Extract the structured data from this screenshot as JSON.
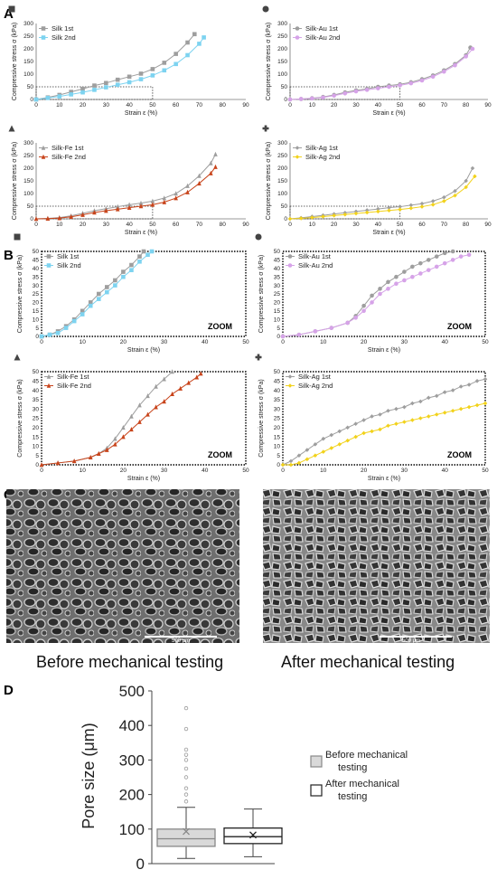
{
  "panel_labels": {
    "A": "A",
    "B": "B",
    "C": "C",
    "D": "D"
  },
  "axis": {
    "ylabel": "Compressive stress σ (kPa)",
    "xlabel": "Strain ε (%)"
  },
  "zoom_label": "ZOOM",
  "captions": {
    "before": "Before mechanical testing",
    "after": "After mechanical testing"
  },
  "scale_bar": "500 μm",
  "colors": {
    "first": "#9e9e9e",
    "silk": "#7dd3f0",
    "au": "#d6a3e8",
    "fe": "#c8441b",
    "ag": "#f2d21b",
    "box_fill": "#d9d9d9"
  },
  "chart_data": [
    {
      "type": "line",
      "panel": "A",
      "marker": "square",
      "xlabel": "Strain ε (%)",
      "ylabel": "Compressive stress σ (kPa)",
      "xlim": [
        0,
        90
      ],
      "ylim": [
        0,
        300
      ],
      "xticks": [
        0,
        10,
        20,
        30,
        40,
        50,
        60,
        70,
        80,
        90
      ],
      "yticks": [
        0,
        50,
        100,
        150,
        200,
        250,
        300
      ],
      "zoom_box": [
        0,
        50
      ],
      "series": [
        {
          "name": "Silk 1st",
          "color": "#9e9e9e",
          "x": [
            0,
            5,
            10,
            15,
            20,
            25,
            30,
            35,
            40,
            45,
            50,
            55,
            60,
            65,
            68
          ],
          "y": [
            0,
            8,
            18,
            30,
            42,
            55,
            65,
            78,
            90,
            102,
            120,
            145,
            180,
            225,
            258
          ]
        },
        {
          "name": "Silk 2nd",
          "color": "#7dd3f0",
          "x": [
            0,
            5,
            10,
            15,
            20,
            25,
            30,
            35,
            40,
            45,
            50,
            55,
            60,
            65,
            70,
            72
          ],
          "y": [
            0,
            6,
            12,
            20,
            28,
            38,
            48,
            58,
            68,
            80,
            95,
            115,
            140,
            175,
            220,
            245
          ]
        }
      ]
    },
    {
      "type": "line",
      "panel": "A",
      "marker": "circle",
      "xlabel": "Strain ε (%)",
      "ylabel": "Compressive stress σ (kPa)",
      "xlim": [
        0,
        90
      ],
      "ylim": [
        0,
        300
      ],
      "xticks": [
        0,
        10,
        20,
        30,
        40,
        50,
        60,
        70,
        80,
        90
      ],
      "yticks": [
        0,
        50,
        100,
        150,
        200,
        250,
        300
      ],
      "zoom_box": [
        0,
        50
      ],
      "series": [
        {
          "name": "Silk-Au 1st",
          "color": "#9e9e9e",
          "x": [
            0,
            5,
            10,
            15,
            20,
            25,
            30,
            35,
            40,
            45,
            50,
            55,
            60,
            65,
            70,
            75,
            80,
            82
          ],
          "y": [
            0,
            2,
            5,
            10,
            18,
            28,
            36,
            42,
            50,
            55,
            60,
            68,
            80,
            95,
            115,
            140,
            175,
            205
          ]
        },
        {
          "name": "Silk-Au 2nd",
          "color": "#d6a3e8",
          "x": [
            0,
            5,
            10,
            15,
            20,
            25,
            30,
            35,
            40,
            45,
            50,
            55,
            60,
            65,
            70,
            75,
            80,
            83
          ],
          "y": [
            0,
            2,
            4,
            8,
            15,
            24,
            32,
            38,
            44,
            50,
            56,
            64,
            75,
            90,
            110,
            135,
            170,
            200
          ]
        }
      ]
    },
    {
      "type": "line",
      "panel": "A",
      "marker": "triangle",
      "xlabel": "Strain ε (%)",
      "ylabel": "Compressive stress σ (kPa)",
      "xlim": [
        0,
        90
      ],
      "ylim": [
        0,
        300
      ],
      "xticks": [
        0,
        10,
        20,
        30,
        40,
        50,
        60,
        70,
        80,
        90
      ],
      "yticks": [
        0,
        50,
        100,
        150,
        200,
        250,
        300
      ],
      "zoom_box": [
        0,
        50
      ],
      "series": [
        {
          "name": "Silk-Fe 1st",
          "color": "#9e9e9e",
          "x": [
            0,
            5,
            10,
            15,
            20,
            25,
            30,
            35,
            40,
            45,
            50,
            55,
            60,
            65,
            70,
            75,
            77
          ],
          "y": [
            0,
            2,
            5,
            12,
            22,
            32,
            40,
            48,
            56,
            62,
            70,
            82,
            100,
            130,
            170,
            220,
            255
          ]
        },
        {
          "name": "Silk-Fe 2nd",
          "color": "#c8441b",
          "x": [
            0,
            5,
            10,
            15,
            20,
            25,
            30,
            35,
            40,
            45,
            50,
            55,
            60,
            65,
            70,
            75,
            77
          ],
          "y": [
            0,
            1,
            3,
            8,
            16,
            25,
            32,
            38,
            44,
            50,
            56,
            66,
            82,
            105,
            140,
            180,
            205
          ]
        }
      ]
    },
    {
      "type": "line",
      "panel": "A",
      "marker": "cross",
      "xlabel": "Strain ε (%)",
      "ylabel": "Compressive stress σ (kPa)",
      "xlim": [
        0,
        90
      ],
      "ylim": [
        0,
        300
      ],
      "xticks": [
        0,
        10,
        20,
        30,
        40,
        50,
        60,
        70,
        80,
        90
      ],
      "yticks": [
        0,
        50,
        100,
        150,
        200,
        250,
        300
      ],
      "zoom_box": [
        0,
        50
      ],
      "series": [
        {
          "name": "Silk-Ag 1st",
          "color": "#9e9e9e",
          "x": [
            0,
            5,
            10,
            15,
            20,
            25,
            30,
            35,
            40,
            45,
            50,
            55,
            60,
            65,
            70,
            75,
            80,
            83
          ],
          "y": [
            0,
            4,
            9,
            14,
            19,
            24,
            29,
            34,
            39,
            44,
            48,
            54,
            60,
            70,
            85,
            110,
            150,
            200
          ]
        },
        {
          "name": "Silk-Ag 2nd",
          "color": "#f2d21b",
          "x": [
            0,
            5,
            10,
            15,
            20,
            25,
            30,
            35,
            40,
            45,
            50,
            55,
            60,
            65,
            70,
            75,
            80,
            84
          ],
          "y": [
            0,
            2,
            5,
            9,
            13,
            17,
            21,
            25,
            29,
            33,
            37,
            42,
            48,
            56,
            70,
            92,
            125,
            168
          ]
        }
      ]
    },
    {
      "type": "line",
      "panel": "B",
      "marker": "square",
      "xlabel": "Strain ε (%)",
      "ylabel": "Compressive stress σ (kPa)",
      "xlim": [
        0,
        50
      ],
      "ylim": [
        0,
        50
      ],
      "xticks": [
        0,
        10,
        20,
        30,
        40,
        50
      ],
      "yticks": [
        0,
        5,
        10,
        15,
        20,
        25,
        30,
        35,
        40,
        45,
        50
      ],
      "zoom": true,
      "series": [
        {
          "name": "Silk 1st",
          "color": "#9e9e9e",
          "x": [
            0,
            2,
            4,
            6,
            8,
            10,
            12,
            14,
            16,
            18,
            20,
            22,
            24,
            25
          ],
          "y": [
            0,
            1,
            3,
            6,
            10,
            15,
            20,
            25,
            29,
            33,
            38,
            42,
            47,
            50
          ]
        },
        {
          "name": "Silk 2nd",
          "color": "#7dd3f0",
          "x": [
            0,
            2,
            4,
            6,
            8,
            10,
            12,
            14,
            16,
            18,
            20,
            22,
            24,
            26,
            27
          ],
          "y": [
            0,
            1,
            2,
            5,
            9,
            13,
            18,
            22,
            26,
            30,
            35,
            39,
            44,
            48,
            50
          ]
        }
      ]
    },
    {
      "type": "line",
      "panel": "B",
      "marker": "circle",
      "xlabel": "Strain ε (%)",
      "ylabel": "Compressive stress σ (kPa)",
      "xlim": [
        0,
        50
      ],
      "ylim": [
        0,
        50
      ],
      "xticks": [
        0,
        10,
        20,
        30,
        40,
        50
      ],
      "yticks": [
        0,
        5,
        10,
        15,
        20,
        25,
        30,
        35,
        40,
        45,
        50
      ],
      "zoom": true,
      "series": [
        {
          "name": "Silk-Au 1st",
          "color": "#9e9e9e",
          "x": [
            0,
            4,
            8,
            12,
            16,
            18,
            20,
            22,
            24,
            26,
            28,
            30,
            32,
            34,
            36,
            38,
            40,
            42
          ],
          "y": [
            0,
            1,
            3,
            5,
            8,
            12,
            18,
            24,
            28,
            32,
            35,
            38,
            41,
            43,
            45,
            47,
            49,
            50
          ]
        },
        {
          "name": "Silk-Au 2nd",
          "color": "#d6a3e8",
          "x": [
            0,
            4,
            8,
            12,
            16,
            18,
            20,
            22,
            24,
            26,
            28,
            30,
            32,
            34,
            36,
            38,
            40,
            42,
            44,
            46
          ],
          "y": [
            0,
            1,
            3,
            5,
            8,
            11,
            15,
            20,
            25,
            28,
            31,
            33,
            35,
            37,
            39,
            41,
            43,
            45,
            47,
            48
          ]
        }
      ]
    },
    {
      "type": "line",
      "panel": "B",
      "marker": "triangle",
      "xlabel": "Strain ε (%)",
      "ylabel": "Compressive stress σ (kPa)",
      "xlim": [
        0,
        50
      ],
      "ylim": [
        0,
        50
      ],
      "xticks": [
        0,
        10,
        20,
        30,
        40,
        50
      ],
      "yticks": [
        0,
        5,
        10,
        15,
        20,
        25,
        30,
        35,
        40,
        45,
        50
      ],
      "zoom": true,
      "series": [
        {
          "name": "Silk-Fe 1st",
          "color": "#9e9e9e",
          "x": [
            0,
            4,
            8,
            12,
            14,
            16,
            18,
            20,
            22,
            24,
            26,
            28,
            30,
            32
          ],
          "y": [
            0,
            1,
            2,
            4,
            6,
            9,
            14,
            20,
            26,
            32,
            37,
            42,
            46,
            50
          ]
        },
        {
          "name": "Silk-Fe 2nd",
          "color": "#c8441b",
          "x": [
            0,
            4,
            8,
            12,
            14,
            16,
            18,
            20,
            22,
            24,
            26,
            28,
            30,
            32,
            34,
            36,
            38,
            39
          ],
          "y": [
            0,
            1,
            2,
            4,
            6,
            8,
            11,
            15,
            19,
            23,
            27,
            31,
            34,
            38,
            41,
            44,
            47,
            49
          ]
        }
      ]
    },
    {
      "type": "line",
      "panel": "B",
      "marker": "cross",
      "xlabel": "Strain ε (%)",
      "ylabel": "Compressive stress σ (kPa)",
      "xlim": [
        0,
        50
      ],
      "ylim": [
        0,
        50
      ],
      "xticks": [
        0,
        10,
        20,
        30,
        40,
        50
      ],
      "yticks": [
        0,
        5,
        10,
        15,
        20,
        25,
        30,
        35,
        40,
        45,
        50
      ],
      "zoom": true,
      "series": [
        {
          "name": "Silk-Ag 1st",
          "color": "#9e9e9e",
          "x": [
            0,
            2,
            4,
            6,
            8,
            10,
            12,
            14,
            16,
            18,
            20,
            22,
            24,
            26,
            28,
            30,
            32,
            34,
            36,
            38,
            40,
            42,
            44,
            46,
            48,
            50
          ],
          "y": [
            0,
            2,
            5,
            8,
            11,
            14,
            16,
            18,
            20,
            22,
            24,
            26,
            27,
            29,
            30,
            31,
            33,
            34,
            36,
            37,
            39,
            40,
            42,
            43,
            45,
            46
          ]
        },
        {
          "name": "Silk-Ag 2nd",
          "color": "#f2d21b",
          "x": [
            0,
            2,
            4,
            6,
            8,
            10,
            12,
            14,
            16,
            18,
            20,
            22,
            24,
            26,
            28,
            30,
            32,
            34,
            36,
            38,
            40,
            42,
            44,
            46,
            48,
            50
          ],
          "y": [
            0,
            0,
            1,
            3,
            5,
            7,
            9,
            11,
            13,
            15,
            17,
            18,
            19,
            21,
            22,
            23,
            24,
            25,
            26,
            27,
            28,
            29,
            30,
            31,
            32,
            33
          ]
        }
      ]
    },
    {
      "type": "box",
      "panel": "D",
      "ylabel": "Pore size (μm)",
      "ylim": [
        0,
        500
      ],
      "yticks": [
        0,
        100,
        200,
        300,
        400,
        500
      ],
      "series": [
        {
          "name": "Before mechanical testing",
          "color": "#d9d9d9",
          "whisker_low": 15,
          "q1": 50,
          "median": 72,
          "q3": 100,
          "whisker_high": 163,
          "mean": 93,
          "outliers": [
            180,
            200,
            218,
            250,
            275,
            300,
            315,
            330,
            390,
            450
          ]
        },
        {
          "name": "After mechanical testing",
          "color": "#ffffff",
          "whisker_low": 20,
          "q1": 58,
          "median": 78,
          "q3": 103,
          "whisker_high": 158,
          "mean": 83,
          "outliers": []
        }
      ]
    }
  ]
}
